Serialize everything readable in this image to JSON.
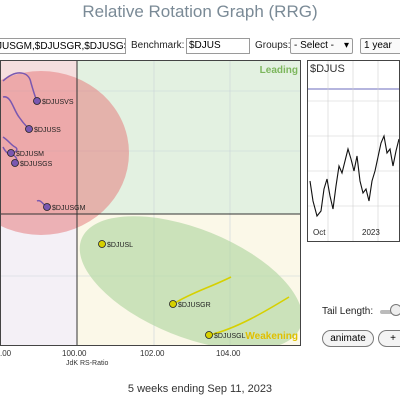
{
  "title": "Relative Rotation Graph (RRG)",
  "controls": {
    "tickers_value": "JUSGM,$DJUSGR,$DJUSGS",
    "benchmark_label": "Benchmark:",
    "benchmark_value": "$DJUS",
    "groups_label": "Groups:",
    "groups_value": "- Select -",
    "period_value": "1 year"
  },
  "quadrants": {
    "leading": "Leading",
    "weakening": "Weakening"
  },
  "x_axis": {
    "label": "JdK RS-Ratio",
    "ticks": [
      ".00",
      "100.00",
      "102.00",
      "104.00"
    ]
  },
  "points": [
    {
      "label": "$DJUSVS"
    },
    {
      "label": "$DJUSS"
    },
    {
      "label": "$DJUSM"
    },
    {
      "label": "$DJUSGS"
    },
    {
      "label": "$DJUSGM"
    },
    {
      "label": "$DJUSL"
    },
    {
      "label": "$DJUSGR"
    },
    {
      "label": "$DJUSGL"
    }
  ],
  "mini_chart": {
    "title": "$DJUS",
    "x_ticks": [
      "Oct",
      "2023"
    ]
  },
  "tail": {
    "label": "Tail Length:"
  },
  "buttons": {
    "animate": "animate",
    "plus": "+"
  },
  "footer": "5 weeks ending Sep 11, 2023",
  "colors": {
    "lagging_bg": "#f5dede",
    "leading_bg": "#e3f1e1",
    "weakening_bg": "#fbf8e8",
    "red_ellipse": "#e57d80",
    "green_ellipse": "#b7d9a6",
    "purple_tail": "#7a58b0",
    "yellow_tail": "#d6d000",
    "leading_text": "#7cb65c",
    "weakening_text": "#e0c000"
  }
}
